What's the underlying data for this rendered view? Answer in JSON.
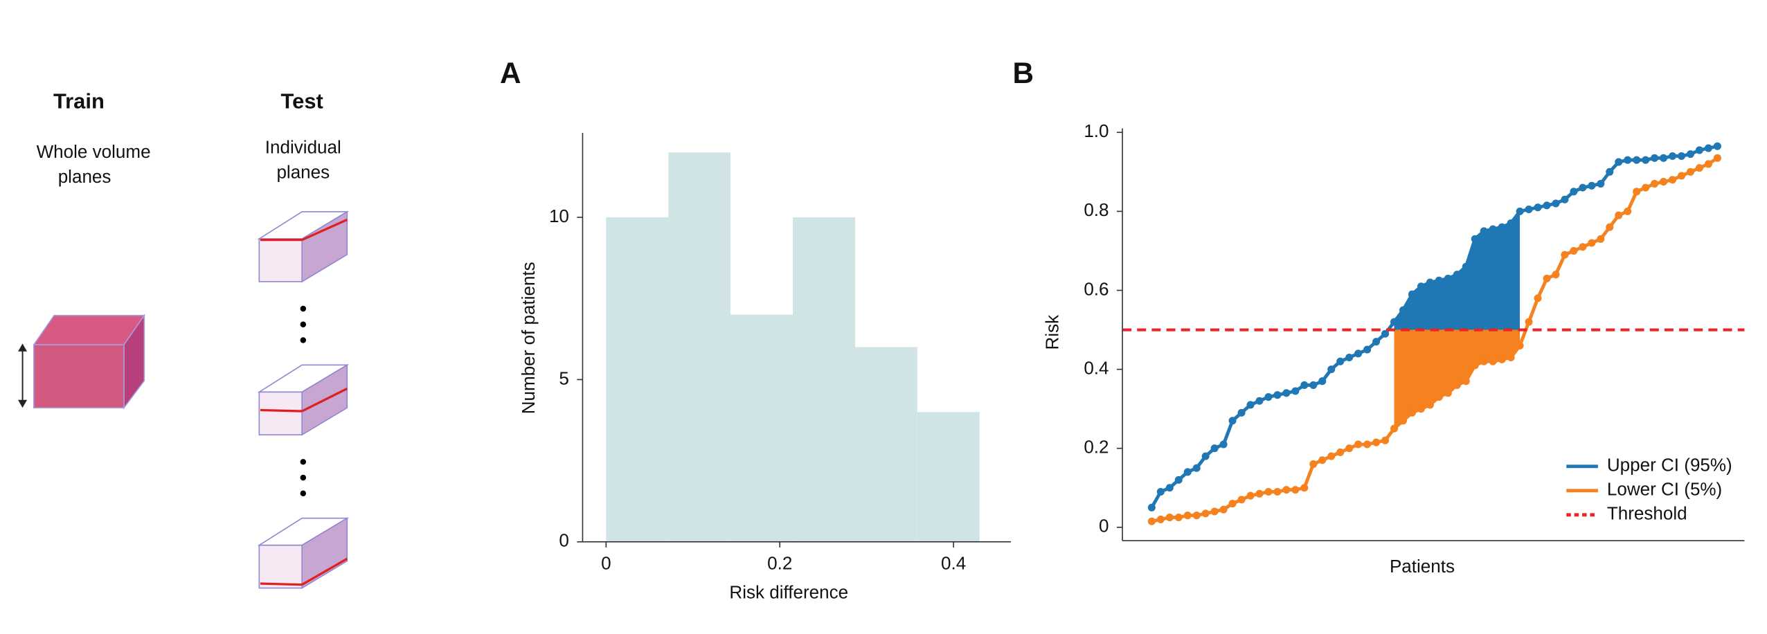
{
  "diagram": {
    "train": {
      "title": "Train",
      "lines": [
        "Whole volume",
        "planes"
      ]
    },
    "test": {
      "title": "Test",
      "lines": [
        "Individual",
        "planes"
      ]
    }
  },
  "chart_data": [
    {
      "type": "histogram",
      "panel": "A",
      "x_label": "Risk difference",
      "y_label": "Number of patients",
      "bins": [
        0,
        0.0717,
        0.1433,
        0.215,
        0.2867,
        0.3583,
        0.43
      ],
      "values": [
        10,
        12,
        7,
        10,
        6,
        4
      ],
      "color": "#d0e4e6",
      "xlim": [
        -0.027,
        0.466
      ],
      "xticks": [
        0,
        0.2,
        0.4
      ],
      "ylim": [
        0,
        12.6
      ],
      "yticks": [
        0,
        5,
        10
      ]
    },
    {
      "type": "line",
      "panel": "B",
      "x_label": "Patients",
      "y_label": "Risk",
      "categories": [
        null,
        null,
        null,
        null,
        null,
        null,
        null,
        null,
        null,
        null,
        null,
        null,
        null,
        null,
        null,
        null,
        null,
        null,
        null,
        null,
        null,
        null,
        null,
        null,
        null,
        null,
        null,
        null,
        null,
        null,
        null,
        null,
        null,
        null,
        null,
        null,
        null,
        null,
        null,
        null,
        null,
        null,
        null,
        null,
        null,
        null,
        null,
        null,
        null,
        null,
        null,
        null,
        null,
        null,
        null,
        null,
        null,
        null,
        null,
        null,
        null,
        null,
        null,
        null
      ],
      "series": [
        {
          "name": "Upper CI (95%)",
          "color": "#1f77b4",
          "values": [
            0.05,
            0.09,
            0.1,
            0.12,
            0.14,
            0.15,
            0.18,
            0.2,
            0.21,
            0.27,
            0.29,
            0.31,
            0.32,
            0.33,
            0.335,
            0.34,
            0.345,
            0.36,
            0.36,
            0.37,
            0.4,
            0.42,
            0.43,
            0.44,
            0.45,
            0.47,
            0.49,
            0.52,
            0.55,
            0.59,
            0.61,
            0.62,
            0.625,
            0.63,
            0.64,
            0.66,
            0.73,
            0.75,
            0.755,
            0.76,
            0.77,
            0.8,
            0.805,
            0.81,
            0.815,
            0.82,
            0.83,
            0.85,
            0.86,
            0.865,
            0.87,
            0.9,
            0.925,
            0.93,
            0.93,
            0.93,
            0.935,
            0.935,
            0.94,
            0.94,
            0.945,
            0.955,
            0.96,
            0.965
          ]
        },
        {
          "name": "Lower CI (5%)",
          "color": "#f5821f",
          "values": [
            0.015,
            0.02,
            0.025,
            0.025,
            0.03,
            0.03,
            0.035,
            0.04,
            0.045,
            0.06,
            0.07,
            0.08,
            0.085,
            0.09,
            0.09,
            0.095,
            0.095,
            0.1,
            0.16,
            0.17,
            0.18,
            0.19,
            0.2,
            0.21,
            0.21,
            0.215,
            0.22,
            0.25,
            0.27,
            0.29,
            0.3,
            0.31,
            0.33,
            0.34,
            0.36,
            0.37,
            0.41,
            0.42,
            0.42,
            0.425,
            0.43,
            0.46,
            0.52,
            0.58,
            0.63,
            0.64,
            0.69,
            0.7,
            0.71,
            0.72,
            0.73,
            0.76,
            0.79,
            0.8,
            0.85,
            0.86,
            0.87,
            0.875,
            0.88,
            0.89,
            0.9,
            0.91,
            0.92,
            0.935
          ]
        }
      ],
      "threshold": {
        "name": "Threshold",
        "value": 0.5,
        "color": "#e8262a"
      },
      "ylim": [
        -0.034,
        1.01
      ],
      "yticks": [
        0,
        0.2,
        0.4,
        0.6,
        0.8,
        {
          "value": 1,
          "label": "1.0"
        }
      ],
      "legend": "lower right"
    }
  ]
}
